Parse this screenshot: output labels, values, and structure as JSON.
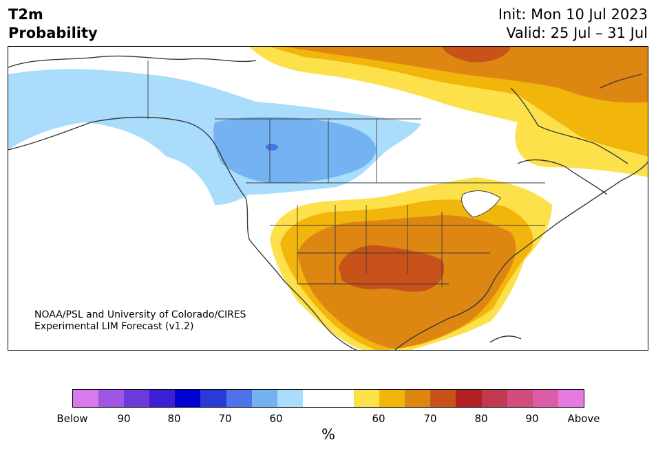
{
  "header": {
    "title_line1": "T2m",
    "title_line2": "Probability",
    "init": "Init: Mon 10 Jul 2023",
    "valid": "Valid: 25 Jul – 31 Jul"
  },
  "map": {
    "credit_line1": "NOAA/PSL and University of Colorado/CIRES",
    "credit_line2": "Experimental LIM Forecast (v1.2)",
    "region": "North America",
    "colors": {
      "below_60": "#aadcfc",
      "below_70": "#74b2f2",
      "below_80": "#4e72ea",
      "above_60": "#fde14a",
      "above_70": "#f2b50c",
      "above_80": "#de8612",
      "above_90": "#c85219",
      "land_line": "#3a3a3a"
    }
  },
  "colorbar": {
    "colors": [
      "#d87aeb",
      "#9e57e4",
      "#6b3ad8",
      "#3a1fd4",
      "#0000d0",
      "#2a3bd8",
      "#4e72ea",
      "#74b2f2",
      "#aadcfc",
      "#ffffff",
      "#ffffff",
      "#fde14a",
      "#f2b50c",
      "#de8612",
      "#c85219",
      "#b22222",
      "#c23a50",
      "#d24c7e",
      "#dc5caa",
      "#e77ae0"
    ],
    "tick_labels": [
      "Below",
      "90",
      "80",
      "70",
      "60",
      "60",
      "70",
      "80",
      "90",
      "Above"
    ],
    "unit": "%"
  }
}
